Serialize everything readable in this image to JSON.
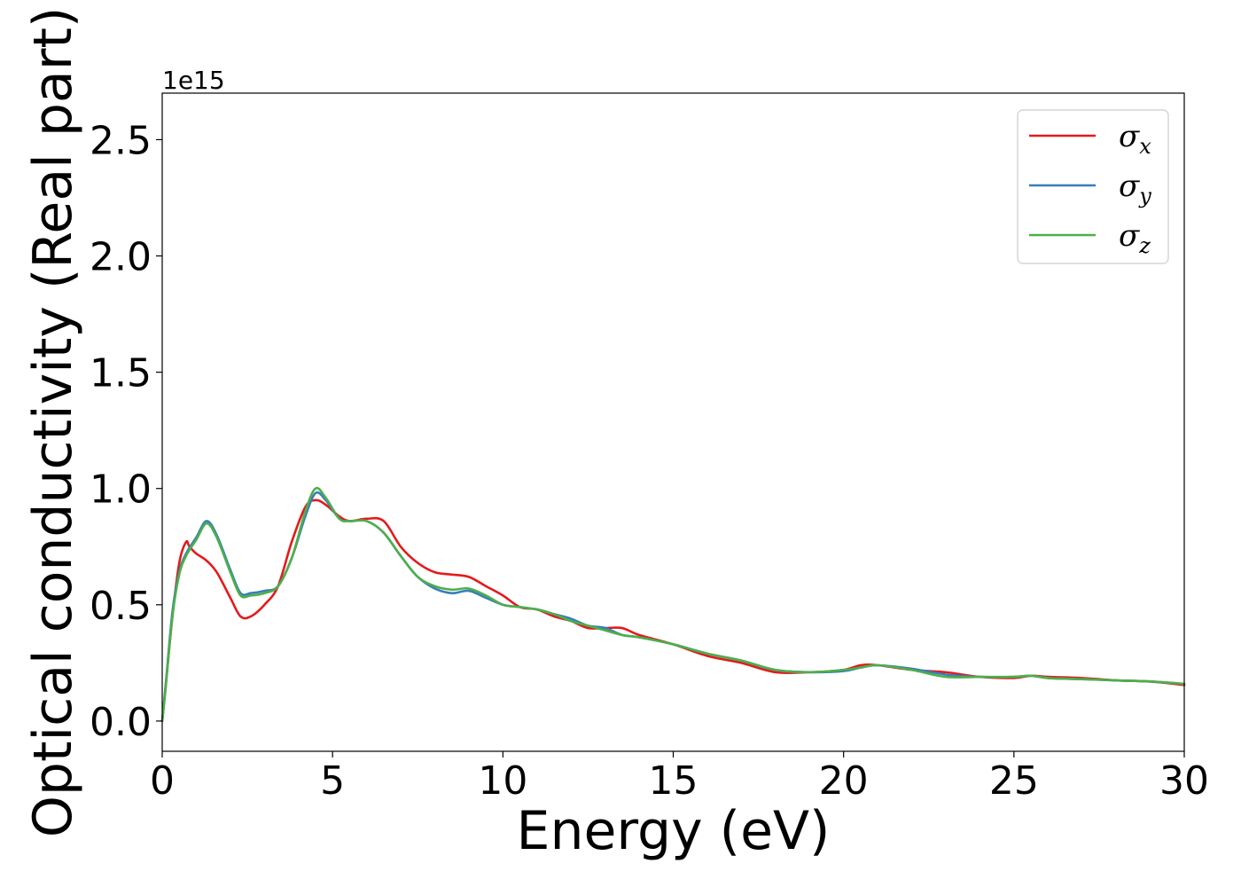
{
  "chart_data": {
    "type": "line",
    "xlabel": "Energy (eV)",
    "ylabel": "Optical conductivity (Real part)",
    "y_offset_text": "1e15",
    "xlim": [
      0,
      30
    ],
    "ylim": [
      -0.13,
      2.7
    ],
    "x_ticks": [
      0,
      5,
      10,
      15,
      20,
      25,
      30
    ],
    "x_tick_labels": [
      "0",
      "5",
      "10",
      "15",
      "20",
      "25",
      "30"
    ],
    "y_ticks": [
      0.0,
      0.5,
      1.0,
      1.5,
      2.0,
      2.5
    ],
    "y_tick_labels": [
      "0.0",
      "0.5",
      "1.0",
      "1.5",
      "2.0",
      "2.5"
    ],
    "grid": false,
    "legend_position": "top-right",
    "series": [
      {
        "name": "σx",
        "symbol": "σ",
        "subscript": "x",
        "color": "#e41a1c",
        "x": [
          0,
          0.1,
          0.3,
          0.5,
          0.7,
          0.8,
          1.0,
          1.3,
          1.6,
          2.0,
          2.3,
          2.6,
          3.0,
          3.4,
          3.8,
          4.2,
          4.5,
          4.8,
          5.2,
          5.5,
          6.0,
          6.5,
          7.0,
          7.5,
          8.0,
          8.5,
          9.0,
          9.5,
          10.0,
          10.5,
          11.0,
          11.5,
          12.0,
          12.5,
          13.0,
          13.5,
          14.0,
          15.0,
          16.0,
          17.0,
          18.0,
          19.0,
          20.0,
          20.5,
          21.0,
          22.0,
          23.0,
          24.0,
          25.0,
          25.5,
          26.0,
          27.0,
          28.0,
          29.0,
          30.0
        ],
        "y": [
          0.0,
          0.15,
          0.45,
          0.68,
          0.77,
          0.75,
          0.72,
          0.69,
          0.64,
          0.53,
          0.45,
          0.45,
          0.5,
          0.58,
          0.77,
          0.92,
          0.95,
          0.93,
          0.88,
          0.86,
          0.87,
          0.86,
          0.75,
          0.68,
          0.64,
          0.63,
          0.62,
          0.58,
          0.54,
          0.49,
          0.48,
          0.45,
          0.43,
          0.4,
          0.4,
          0.4,
          0.37,
          0.33,
          0.28,
          0.25,
          0.21,
          0.21,
          0.22,
          0.24,
          0.24,
          0.22,
          0.21,
          0.19,
          0.185,
          0.195,
          0.19,
          0.185,
          0.175,
          0.17,
          0.155
        ]
      },
      {
        "name": "σy",
        "symbol": "σ",
        "subscript": "y",
        "color": "#377eb8",
        "x": [
          0,
          0.1,
          0.3,
          0.5,
          0.7,
          1.0,
          1.3,
          1.6,
          2.0,
          2.3,
          2.6,
          3.0,
          3.4,
          3.8,
          4.2,
          4.5,
          4.8,
          5.2,
          5.5,
          6.0,
          6.5,
          7.0,
          7.5,
          8.0,
          8.5,
          9.0,
          9.5,
          10.0,
          10.5,
          11.0,
          11.5,
          12.0,
          12.5,
          13.0,
          13.5,
          14.0,
          15.0,
          16.0,
          17.0,
          18.0,
          19.0,
          20.0,
          20.5,
          21.0,
          22.0,
          23.0,
          24.0,
          25.0,
          25.5,
          26.0,
          27.0,
          28.0,
          29.0,
          30.0
        ],
        "y": [
          0.0,
          0.15,
          0.47,
          0.64,
          0.72,
          0.79,
          0.86,
          0.8,
          0.65,
          0.55,
          0.55,
          0.56,
          0.58,
          0.7,
          0.88,
          0.98,
          0.95,
          0.87,
          0.86,
          0.86,
          0.81,
          0.71,
          0.62,
          0.57,
          0.55,
          0.56,
          0.53,
          0.5,
          0.49,
          0.48,
          0.46,
          0.44,
          0.41,
          0.4,
          0.37,
          0.36,
          0.33,
          0.29,
          0.26,
          0.22,
          0.21,
          0.215,
          0.23,
          0.24,
          0.225,
          0.2,
          0.19,
          0.19,
          0.195,
          0.185,
          0.18,
          0.175,
          0.17,
          0.16
        ]
      },
      {
        "name": "σz",
        "symbol": "σ",
        "subscript": "z",
        "color": "#4daf4a",
        "x": [
          0,
          0.1,
          0.3,
          0.5,
          0.7,
          1.0,
          1.3,
          1.6,
          2.0,
          2.3,
          2.6,
          3.0,
          3.4,
          3.8,
          4.2,
          4.5,
          4.8,
          5.2,
          5.5,
          6.0,
          6.5,
          7.0,
          7.5,
          8.0,
          8.5,
          9.0,
          9.5,
          10.0,
          10.5,
          11.0,
          11.5,
          12.0,
          12.5,
          13.0,
          13.5,
          14.0,
          15.0,
          16.0,
          17.0,
          18.0,
          19.0,
          20.0,
          20.5,
          21.0,
          22.0,
          23.0,
          24.0,
          25.0,
          25.5,
          26.0,
          27.0,
          28.0,
          29.0,
          30.0
        ],
        "y": [
          0.0,
          0.14,
          0.45,
          0.63,
          0.71,
          0.78,
          0.85,
          0.79,
          0.64,
          0.54,
          0.54,
          0.55,
          0.58,
          0.7,
          0.9,
          1.0,
          0.96,
          0.87,
          0.86,
          0.86,
          0.81,
          0.71,
          0.62,
          0.58,
          0.565,
          0.57,
          0.54,
          0.5,
          0.49,
          0.48,
          0.46,
          0.43,
          0.41,
          0.39,
          0.37,
          0.36,
          0.33,
          0.29,
          0.26,
          0.22,
          0.21,
          0.22,
          0.23,
          0.24,
          0.22,
          0.19,
          0.19,
          0.19,
          0.195,
          0.185,
          0.18,
          0.175,
          0.17,
          0.16
        ]
      }
    ]
  }
}
